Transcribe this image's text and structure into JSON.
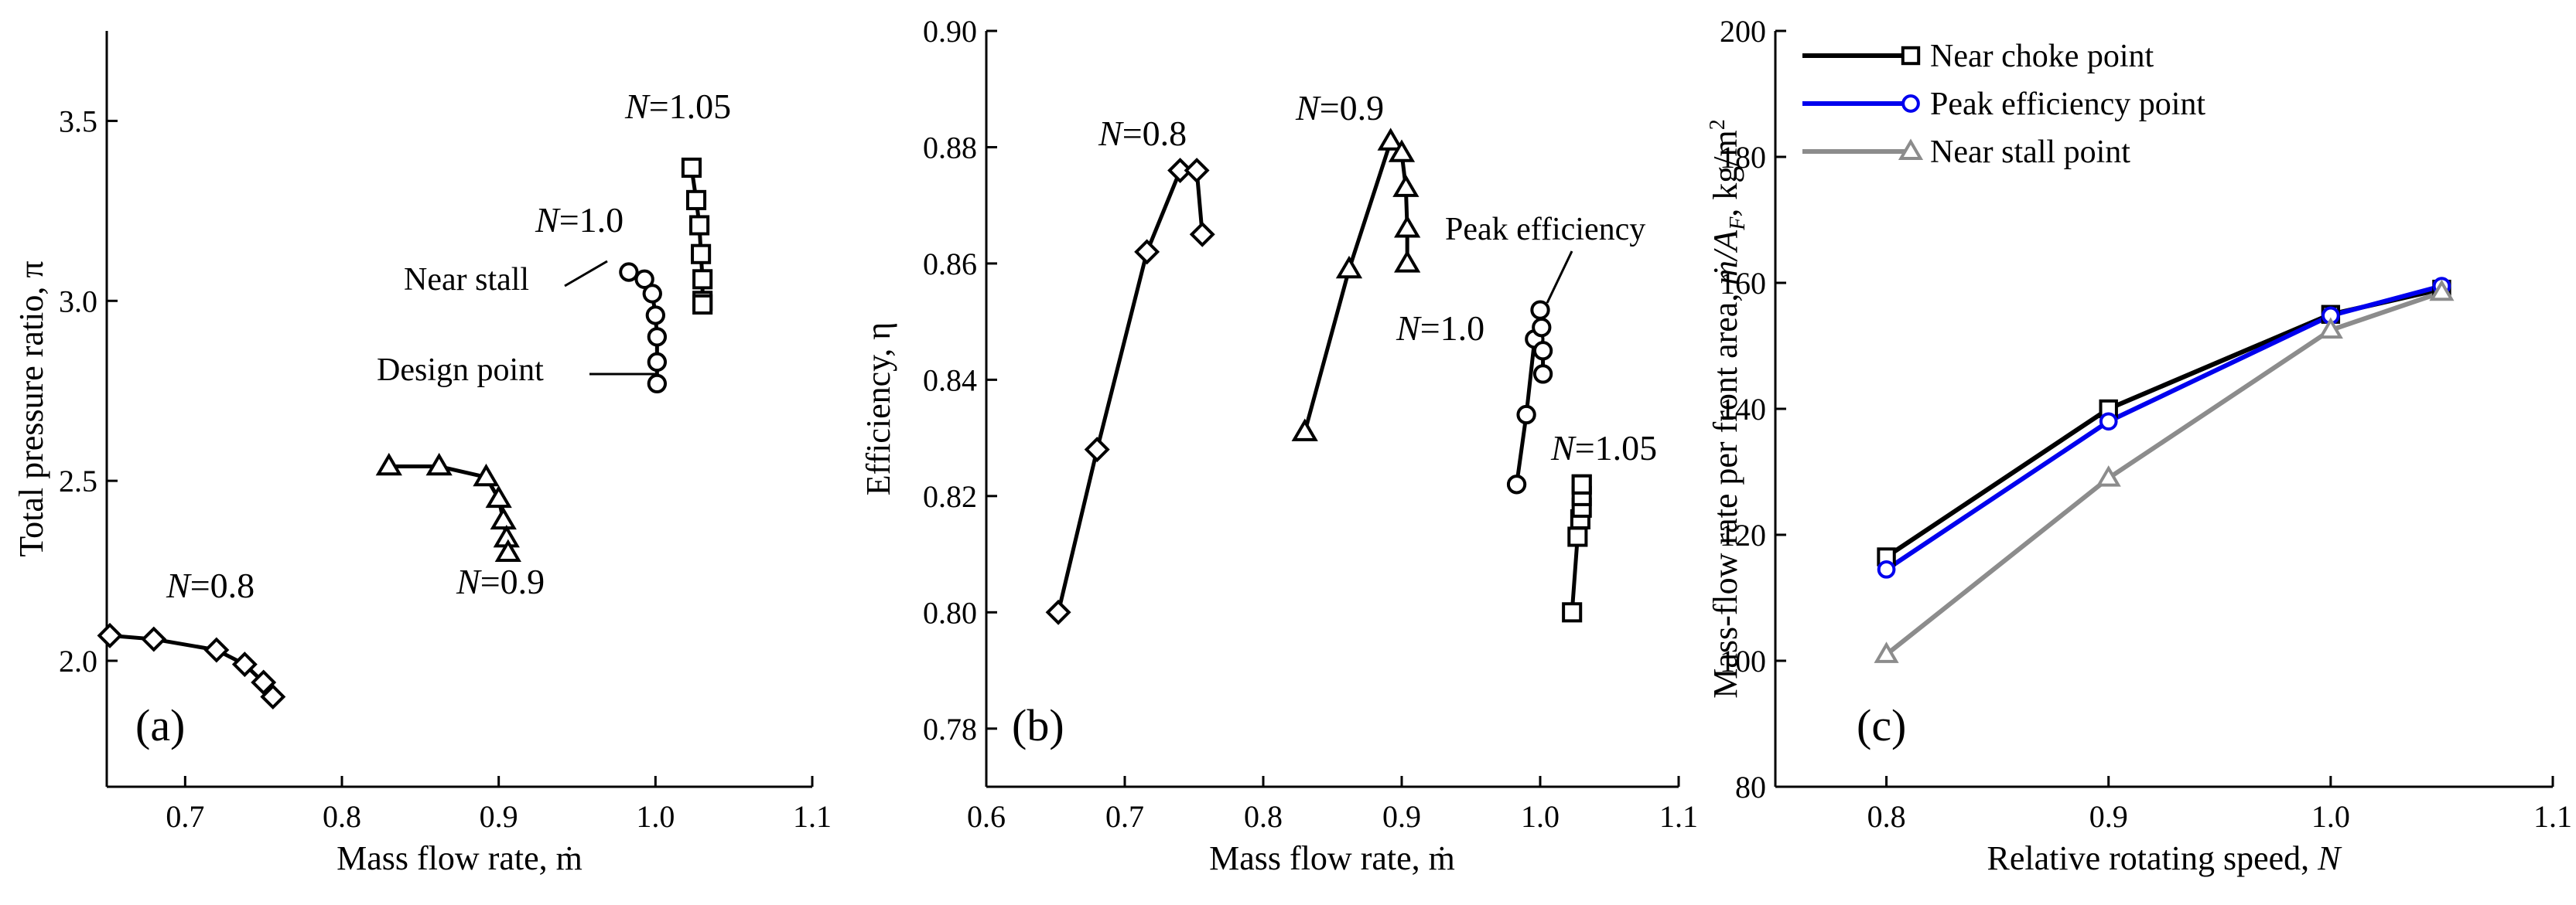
{
  "chart_data": [
    {
      "panel": "(a)",
      "type": "line",
      "xlabel": "Mass flow rate, ṁ",
      "ylabel": "Total pressure ratio, π",
      "xlim": [
        0.65,
        1.1
      ],
      "ylim": [
        1.65,
        3.75
      ],
      "xticks": [
        0.7,
        0.8,
        0.9,
        1.0,
        1.1
      ],
      "yticks": [
        2.0,
        2.5,
        3.0,
        3.5
      ],
      "xtick_labels": [
        "0.7",
        "0.8",
        "0.9",
        "1.0",
        "1.1"
      ],
      "ytick_labels": [
        "2.0",
        "2.5",
        "3.0",
        "3.5"
      ],
      "series": [
        {
          "name": "N=0.8",
          "label_parts": [
            "N",
            "=0.8"
          ],
          "marker": "diamond",
          "x": [
            0.652,
            0.68,
            0.72,
            0.738,
            0.75,
            0.756
          ],
          "y": [
            2.07,
            2.06,
            2.03,
            1.99,
            1.94,
            1.9
          ]
        },
        {
          "name": "N=0.9",
          "label_parts": [
            "N",
            "=0.9"
          ],
          "marker": "triangle",
          "x": [
            0.83,
            0.862,
            0.892,
            0.9,
            0.903,
            0.905,
            0.906
          ],
          "y": [
            2.54,
            2.54,
            2.51,
            2.45,
            2.39,
            2.34,
            2.3
          ]
        },
        {
          "name": "N=1.0",
          "label_parts": [
            "N",
            "=1.0"
          ],
          "marker": "circle",
          "x": [
            0.983,
            0.993,
            0.998,
            1.0,
            1.001,
            1.001,
            1.001
          ],
          "y": [
            3.08,
            3.06,
            3.02,
            2.96,
            2.9,
            2.83,
            2.77
          ]
        },
        {
          "name": "N=1.05",
          "label_parts": [
            "N",
            "=1.05"
          ],
          "marker": "square",
          "x": [
            1.023,
            1.026,
            1.028,
            1.029,
            1.03,
            1.03,
            1.03
          ],
          "y": [
            3.37,
            3.28,
            3.21,
            3.13,
            3.06,
            3.0,
            2.99
          ]
        }
      ],
      "annotations": [
        "Near stall",
        "Design point"
      ]
    },
    {
      "panel": "(b)",
      "type": "line",
      "xlabel": "Mass flow rate, ṁ",
      "ylabel": "Efficiency, η",
      "xlim": [
        0.6,
        1.1
      ],
      "ylim": [
        0.77,
        0.9
      ],
      "xticks": [
        0.6,
        0.7,
        0.8,
        0.9,
        1.0,
        1.1
      ],
      "yticks": [
        0.78,
        0.8,
        0.82,
        0.84,
        0.86,
        0.88,
        0.9
      ],
      "xtick_labels": [
        "0.6",
        "0.7",
        "0.8",
        "0.9",
        "1.0",
        "1.1"
      ],
      "ytick_labels": [
        "0.78",
        "0.80",
        "0.82",
        "0.84",
        "0.86",
        "0.88",
        "0.90"
      ],
      "series": [
        {
          "name": "N=0.8",
          "label_parts": [
            "N",
            "=0.8"
          ],
          "marker": "diamond",
          "x": [
            0.652,
            0.68,
            0.716,
            0.74,
            0.752,
            0.756
          ],
          "y": [
            0.8,
            0.828,
            0.862,
            0.876,
            0.876,
            0.865
          ]
        },
        {
          "name": "N=0.9",
          "label_parts": [
            "N",
            "=0.9"
          ],
          "marker": "triangle",
          "x": [
            0.83,
            0.862,
            0.892,
            0.9,
            0.903,
            0.904,
            0.904
          ],
          "y": [
            0.831,
            0.859,
            0.881,
            0.879,
            0.873,
            0.866,
            0.86
          ]
        },
        {
          "name": "N=1.0",
          "label_parts": [
            "N",
            "=1.0"
          ],
          "marker": "circle",
          "x": [
            0.983,
            0.99,
            0.996,
            1.0,
            1.001,
            1.002,
            1.002
          ],
          "y": [
            0.822,
            0.834,
            0.847,
            0.852,
            0.849,
            0.845,
            0.841
          ]
        },
        {
          "name": "N=1.05",
          "label_parts": [
            "N",
            "=1.05"
          ],
          "marker": "square",
          "x": [
            1.023,
            1.027,
            1.029,
            1.03,
            1.03,
            1.03,
            1.03
          ],
          "y": [
            0.8,
            0.813,
            0.816,
            0.818,
            0.82,
            0.822,
            0.822
          ]
        }
      ],
      "annotations": [
        "Peak efficiency"
      ]
    },
    {
      "panel": "(c)",
      "type": "line",
      "xlabel": "Relative rotating speed, N",
      "ylabel": "Mass-flow rate per front area, ṁ/AF, kg/m²",
      "xlim": [
        0.75,
        1.1
      ],
      "ylim": [
        80,
        200
      ],
      "xticks": [
        0.8,
        0.9,
        1.0,
        1.1
      ],
      "yticks": [
        80,
        100,
        120,
        140,
        160,
        180,
        200
      ],
      "xtick_labels": [
        "0.8",
        "0.9",
        "1.0",
        "1.1"
      ],
      "ytick_labels": [
        "80",
        "100",
        "120",
        "140",
        "160",
        "180",
        "200"
      ],
      "categories": [
        0.8,
        0.9,
        1.0,
        1.05
      ],
      "series": [
        {
          "name": "Near choke point",
          "marker": "square",
          "color": "#000000",
          "values": [
            116.5,
            140.0,
            155.0,
            159.0
          ]
        },
        {
          "name": "Peak efficiency point",
          "marker": "circle",
          "color": "#0000ee",
          "values": [
            114.5,
            138.0,
            154.8,
            159.5
          ]
        },
        {
          "name": "Near stall point",
          "marker": "triangle",
          "color": "#8c8c8c",
          "values": [
            101.0,
            129.0,
            152.5,
            158.5
          ]
        }
      ],
      "legend_position": "top-left"
    }
  ]
}
